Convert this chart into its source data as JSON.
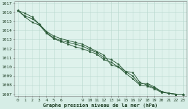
{
  "title": "Graphe pression niveau de la mer (hPa)",
  "background_color": "#d6ede6",
  "grid_color": "#b8d8ce",
  "line_color": "#2d5c3a",
  "plot_bg": "#dff2ec",
  "xlim": [
    -0.5,
    23.5
  ],
  "ylim": [
    1006.8,
    1017.2
  ],
  "xtick_positions": [
    0,
    1,
    2,
    3,
    4,
    5,
    6,
    9,
    10,
    11,
    12,
    13,
    14,
    15,
    16,
    17,
    18,
    19,
    20,
    21,
    22,
    23
  ],
  "xtick_labels": [
    "0",
    "1",
    "2",
    "3",
    "4",
    "5",
    "6",
    "9",
    "10",
    "11",
    "12",
    "13",
    "14",
    "15",
    "16",
    "17",
    "18",
    "19",
    "20",
    "21",
    "22",
    "23"
  ],
  "ytick_positions": [
    1007,
    1008,
    1009,
    1010,
    1011,
    1012,
    1013,
    1014,
    1015,
    1016,
    1017
  ],
  "ytick_labels": [
    "1007",
    "1008",
    "1009",
    "1010",
    "1011",
    "1012",
    "1013",
    "1014",
    "1015",
    "1016",
    "1017"
  ],
  "series": [
    {
      "x": [
        0,
        1,
        2,
        3,
        4,
        5,
        6,
        7,
        8,
        9,
        10,
        11,
        12,
        13,
        14,
        15,
        16,
        17,
        18,
        19,
        20,
        21,
        22,
        23
      ],
      "y": [
        1016.2,
        1015.9,
        1015.5,
        1014.7,
        1013.9,
        1013.4,
        1013.1,
        1012.9,
        1012.7,
        1012.5,
        1012.1,
        1011.7,
        1011.3,
        1010.2,
        1010.0,
        1009.5,
        1009.0,
        1008.1,
        1008.2,
        1007.8,
        1007.3,
        1007.1,
        1007.0,
        1007.0
      ]
    },
    {
      "x": [
        0,
        1,
        2,
        3,
        4,
        5,
        6,
        7,
        8,
        9,
        10,
        11,
        12,
        13,
        14,
        15,
        16,
        17,
        18,
        19,
        20,
        21,
        22,
        23
      ],
      "y": [
        1016.2,
        1015.6,
        1015.3,
        1014.7,
        1013.8,
        1013.2,
        1012.9,
        1012.7,
        1012.5,
        1012.3,
        1011.9,
        1011.6,
        1011.0,
        1010.8,
        1010.3,
        1009.5,
        1009.4,
        1008.3,
        1008.0,
        1007.7,
        1007.3,
        1007.1,
        1007.0,
        1007.0
      ]
    },
    {
      "x": [
        0,
        1,
        2,
        3,
        4,
        5,
        6,
        7,
        8,
        9,
        10,
        11,
        12,
        13,
        14,
        15,
        16,
        17,
        18,
        19,
        20,
        21,
        22,
        23
      ],
      "y": [
        1016.2,
        1015.5,
        1014.9,
        1014.6,
        1013.7,
        1013.1,
        1012.8,
        1012.5,
        1012.2,
        1012.0,
        1011.7,
        1011.4,
        1010.8,
        1010.5,
        1010.0,
        1009.3,
        1008.7,
        1008.0,
        1007.9,
        1007.6,
        1007.2,
        1007.1,
        1007.0,
        1007.0
      ]
    }
  ]
}
